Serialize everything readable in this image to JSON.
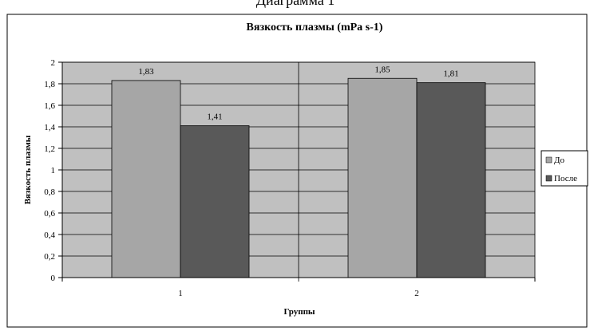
{
  "header_fragment": "Диаграмма 1",
  "chart_data": {
    "type": "bar",
    "title": "Вязкость  плазмы (mPa s-1)",
    "xlabel": "Группы",
    "ylabel": "Вязкость плазмы",
    "categories": [
      "1",
      "2"
    ],
    "ylim": [
      0,
      2
    ],
    "yticks": [
      "0",
      "0,2",
      "0,4",
      "0,6",
      "0,8",
      "1",
      "1,2",
      "1,4",
      "1,6",
      "1,8",
      "2"
    ],
    "grid": true,
    "legend_position": "right",
    "plot_background": "#c0c0c0",
    "series": [
      {
        "name": "До",
        "values": [
          1.83,
          1.85
        ],
        "labels": [
          "1,83",
          "1,85"
        ],
        "color": "#a6a6a6"
      },
      {
        "name": "После",
        "values": [
          1.41,
          1.81
        ],
        "labels": [
          "1,41",
          "1,81"
        ],
        "color": "#595959"
      }
    ]
  }
}
